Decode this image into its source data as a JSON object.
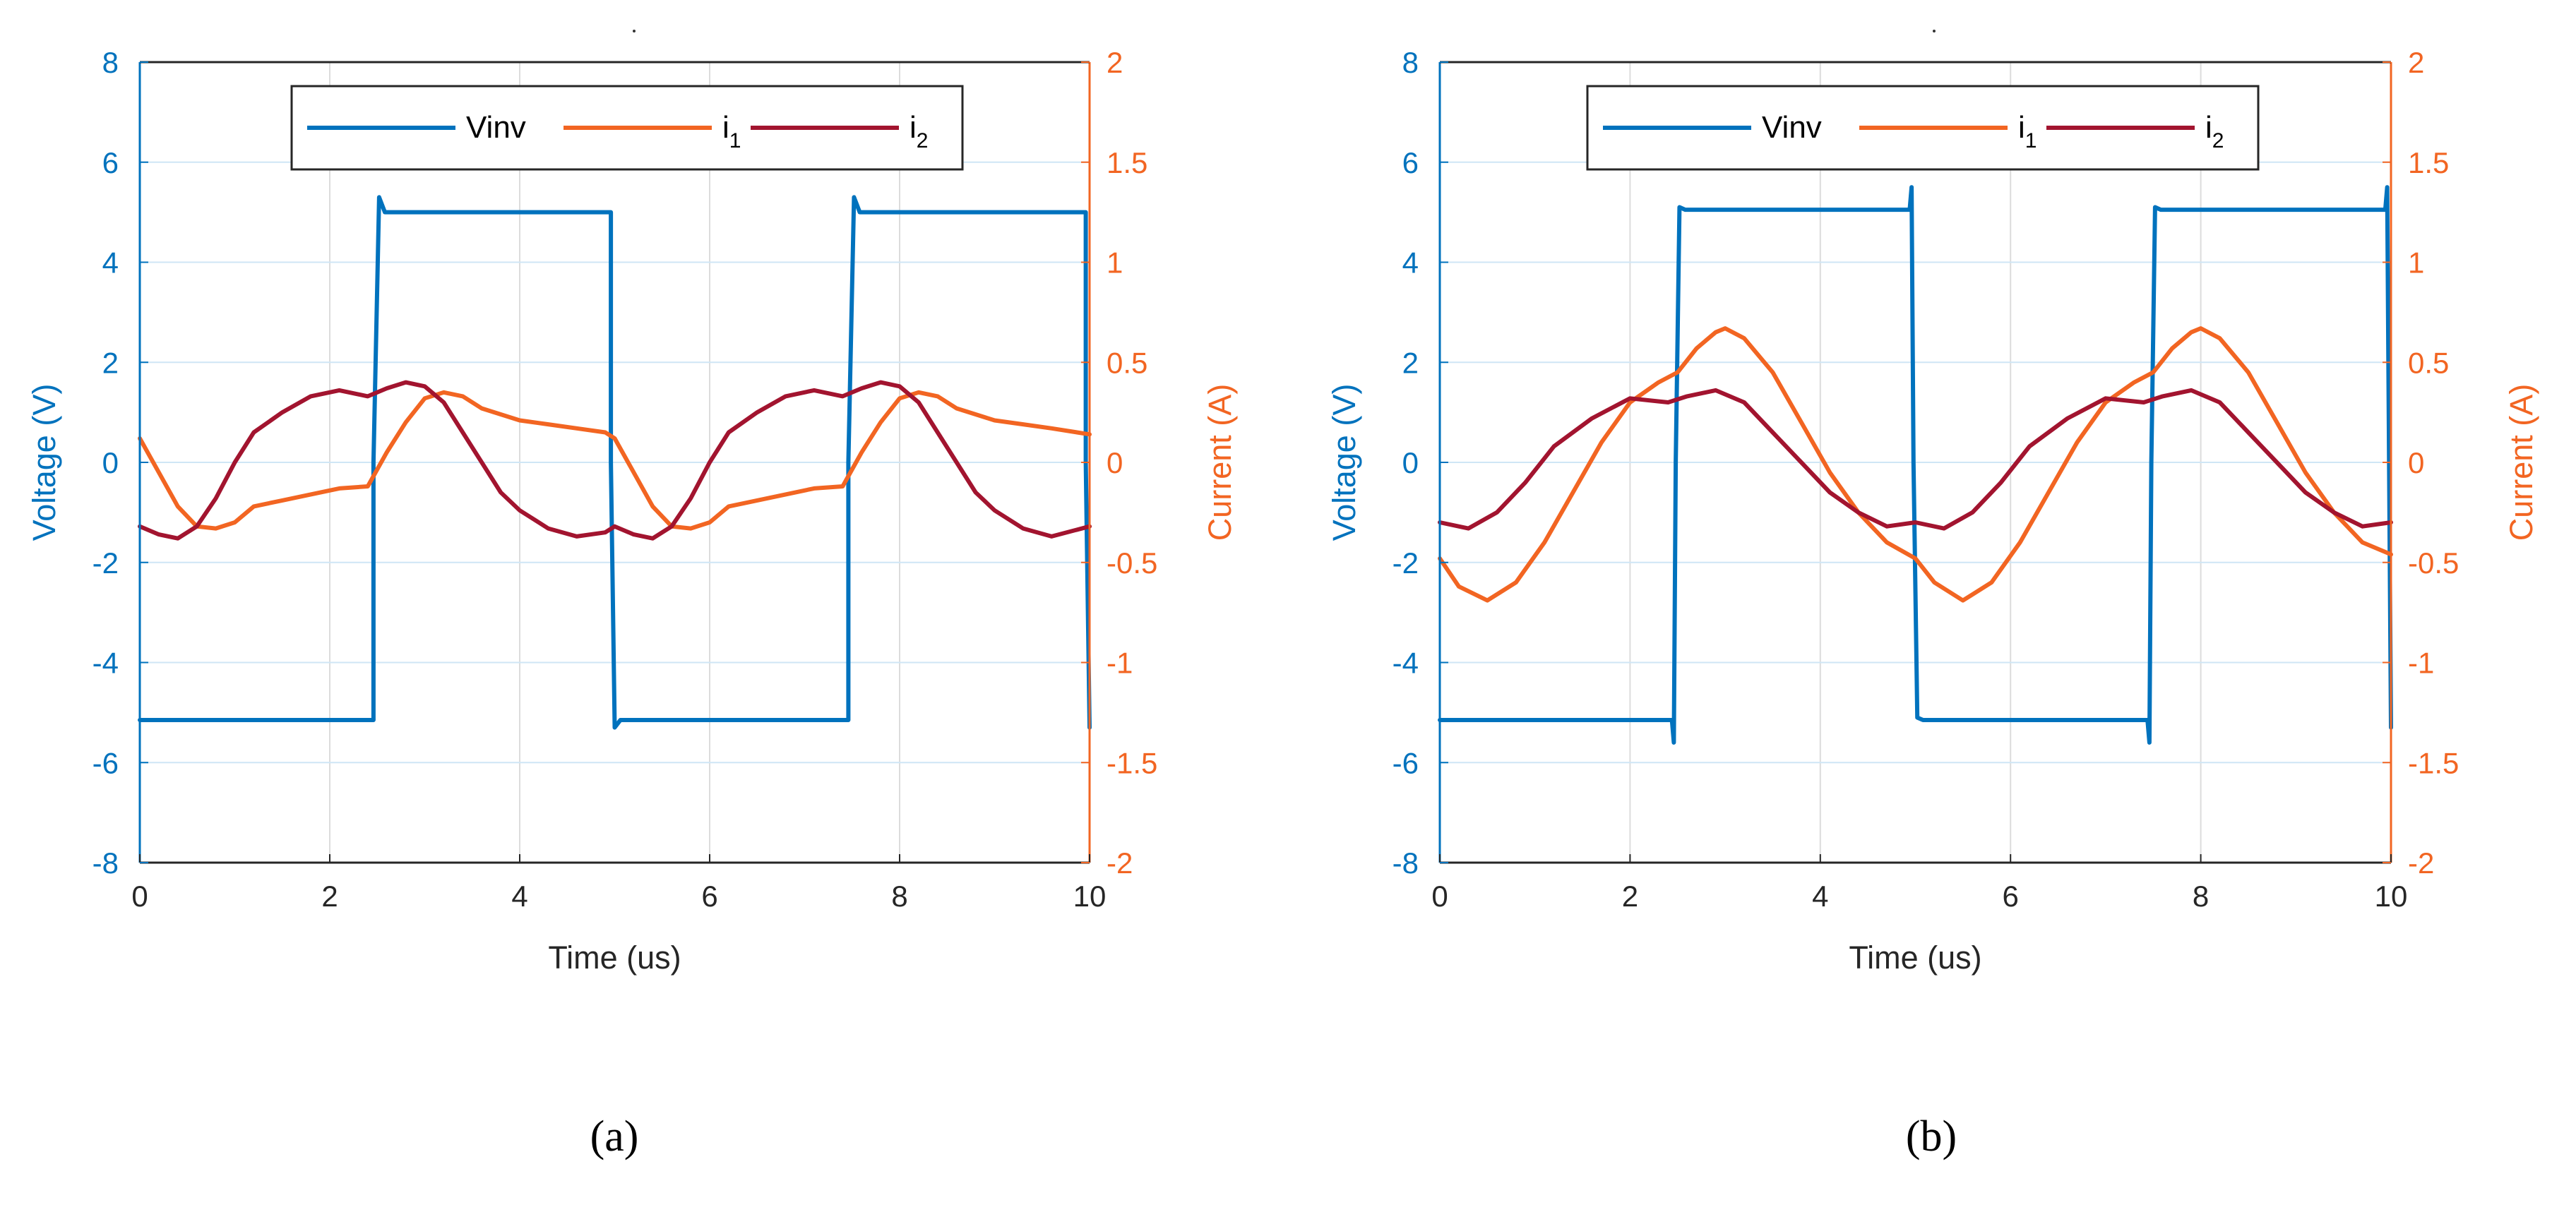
{
  "chart_data": [
    {
      "type": "line",
      "caption": "(a)",
      "xlabel": "Time (us)",
      "ylabel_left": "Voltage (V)",
      "ylabel_right": "Current (A)",
      "xlim": [
        0,
        10
      ],
      "ylim_left": [
        -8,
        8
      ],
      "ylim_right": [
        -2,
        2
      ],
      "xticks": [
        "0",
        "2",
        "4",
        "6",
        "8",
        "10"
      ],
      "yticks_left": [
        "-8",
        "-6",
        "-4",
        "-2",
        "0",
        "2",
        "4",
        "6",
        "8"
      ],
      "yticks_right": [
        "-2",
        "-1.5",
        "-1",
        "-0.5",
        "0",
        "0.5",
        "1",
        "1.5",
        "2"
      ],
      "grid": true,
      "legend": {
        "position": "top-center",
        "entries": [
          "Vinv",
          "i",
          "i"
        ],
        "subscripts": [
          "",
          "1",
          "2"
        ]
      },
      "series": [
        {
          "name": "Vinv",
          "axis": "left",
          "color": "#0072BD",
          "x": [
            0,
            2.46,
            2.46,
            2.52,
            2.58,
            4.96,
            4.96,
            5.0,
            5.06,
            7.46,
            7.46,
            7.52,
            7.58,
            9.96,
            9.96,
            10.0
          ],
          "y": [
            -5.15,
            -5.15,
            0,
            5.3,
            5.0,
            5.0,
            0,
            -5.3,
            -5.15,
            -5.15,
            0,
            5.3,
            5.0,
            5.0,
            0,
            -5.3
          ]
        },
        {
          "name": "i1",
          "axis": "right",
          "color": "#F26522",
          "x": [
            0,
            0.2,
            0.4,
            0.6,
            0.8,
            1.0,
            1.2,
            1.5,
            1.8,
            2.1,
            2.4,
            2.6,
            2.8,
            3.0,
            3.2,
            3.4,
            3.6,
            3.8,
            4.0,
            4.3,
            4.6,
            4.9,
            5.0,
            5.2,
            5.4,
            5.6,
            5.8,
            6.0,
            6.2,
            6.5,
            6.8,
            7.1,
            7.4,
            7.6,
            7.8,
            8.0,
            8.2,
            8.4,
            8.6,
            8.8,
            9.0,
            9.3,
            9.6,
            10.0
          ],
          "y": [
            0.12,
            -0.05,
            -0.22,
            -0.32,
            -0.33,
            -0.3,
            -0.22,
            -0.19,
            -0.16,
            -0.13,
            -0.12,
            0.05,
            0.2,
            0.32,
            0.35,
            0.33,
            0.27,
            0.24,
            0.21,
            0.19,
            0.17,
            0.15,
            0.12,
            -0.05,
            -0.22,
            -0.32,
            -0.33,
            -0.3,
            -0.22,
            -0.19,
            -0.16,
            -0.13,
            -0.12,
            0.05,
            0.2,
            0.32,
            0.35,
            0.33,
            0.27,
            0.24,
            0.21,
            0.19,
            0.17,
            0.14
          ]
        },
        {
          "name": "i2",
          "axis": "right",
          "color": "#A2142F",
          "x": [
            0,
            0.2,
            0.4,
            0.6,
            0.8,
            1.0,
            1.2,
            1.5,
            1.8,
            2.1,
            2.4,
            2.6,
            2.8,
            3.0,
            3.2,
            3.4,
            3.6,
            3.8,
            4.0,
            4.3,
            4.6,
            4.9,
            5.0,
            5.2,
            5.4,
            5.6,
            5.8,
            6.0,
            6.2,
            6.5,
            6.8,
            7.1,
            7.4,
            7.6,
            7.8,
            8.0,
            8.2,
            8.4,
            8.6,
            8.8,
            9.0,
            9.3,
            9.6,
            10.0
          ],
          "y": [
            -0.32,
            -0.36,
            -0.38,
            -0.32,
            -0.18,
            0.0,
            0.15,
            0.25,
            0.33,
            0.36,
            0.33,
            0.37,
            0.4,
            0.38,
            0.3,
            0.15,
            0.0,
            -0.15,
            -0.24,
            -0.33,
            -0.37,
            -0.35,
            -0.32,
            -0.36,
            -0.38,
            -0.32,
            -0.18,
            0.0,
            0.15,
            0.25,
            0.33,
            0.36,
            0.33,
            0.37,
            0.4,
            0.38,
            0.3,
            0.15,
            0.0,
            -0.15,
            -0.24,
            -0.33,
            -0.37,
            -0.32
          ]
        }
      ]
    },
    {
      "type": "line",
      "caption": "(b)",
      "xlabel": "Time (us)",
      "ylabel_left": "Voltage (V)",
      "ylabel_right": "Current (A)",
      "xlim": [
        0,
        10
      ],
      "ylim_left": [
        -8,
        8
      ],
      "ylim_right": [
        -2,
        2
      ],
      "xticks": [
        "0",
        "2",
        "4",
        "6",
        "8",
        "10"
      ],
      "yticks_left": [
        "-8",
        "-6",
        "-4",
        "-2",
        "0",
        "2",
        "4",
        "6",
        "8"
      ],
      "yticks_right": [
        "-2",
        "-1.5",
        "-1",
        "-0.5",
        "0",
        "0.5",
        "1",
        "1.5",
        "2"
      ],
      "grid": true,
      "legend": {
        "position": "top-center",
        "entries": [
          "Vinv",
          "i",
          "i"
        ],
        "subscripts": [
          "",
          "1",
          "2"
        ]
      },
      "series": [
        {
          "name": "Vinv",
          "axis": "left",
          "color": "#0072BD",
          "x": [
            0,
            2.44,
            2.46,
            2.48,
            2.52,
            2.58,
            4.94,
            4.96,
            4.98,
            5.02,
            5.08,
            7.44,
            7.46,
            7.48,
            7.52,
            7.58,
            9.94,
            9.96,
            9.98,
            10.0
          ],
          "y": [
            -5.15,
            -5.15,
            -5.6,
            0,
            5.1,
            5.05,
            5.05,
            5.5,
            0,
            -5.1,
            -5.15,
            -5.15,
            -5.6,
            0,
            5.1,
            5.05,
            5.05,
            5.5,
            0,
            -5.3
          ]
        },
        {
          "name": "i1",
          "axis": "right",
          "color": "#F26522",
          "x": [
            0,
            0.2,
            0.5,
            0.8,
            1.1,
            1.4,
            1.7,
            2.0,
            2.3,
            2.5,
            2.7,
            2.9,
            3.0,
            3.2,
            3.5,
            3.8,
            4.1,
            4.4,
            4.7,
            5.0,
            5.2,
            5.5,
            5.8,
            6.1,
            6.4,
            6.7,
            7.0,
            7.3,
            7.5,
            7.7,
            7.9,
            8.0,
            8.2,
            8.5,
            8.8,
            9.1,
            9.4,
            9.7,
            10.0
          ],
          "y": [
            -0.48,
            -0.62,
            -0.69,
            -0.6,
            -0.4,
            -0.15,
            0.1,
            0.3,
            0.4,
            0.45,
            0.57,
            0.65,
            0.67,
            0.62,
            0.45,
            0.2,
            -0.05,
            -0.25,
            -0.4,
            -0.48,
            -0.6,
            -0.69,
            -0.6,
            -0.4,
            -0.15,
            0.1,
            0.3,
            0.4,
            0.45,
            0.57,
            0.65,
            0.67,
            0.62,
            0.45,
            0.2,
            -0.05,
            -0.25,
            -0.4,
            -0.46
          ]
        },
        {
          "name": "i2",
          "axis": "right",
          "color": "#A2142F",
          "x": [
            0,
            0.3,
            0.6,
            0.9,
            1.2,
            1.6,
            2.0,
            2.4,
            2.6,
            2.9,
            3.2,
            3.5,
            3.8,
            4.1,
            4.4,
            4.7,
            5.0,
            5.3,
            5.6,
            5.9,
            6.2,
            6.6,
            7.0,
            7.4,
            7.6,
            7.9,
            8.2,
            8.5,
            8.8,
            9.1,
            9.4,
            9.7,
            10.0
          ],
          "y": [
            -0.3,
            -0.33,
            -0.25,
            -0.1,
            0.08,
            0.22,
            0.32,
            0.3,
            0.33,
            0.36,
            0.3,
            0.15,
            0.0,
            -0.15,
            -0.25,
            -0.32,
            -0.3,
            -0.33,
            -0.25,
            -0.1,
            0.08,
            0.22,
            0.32,
            0.3,
            0.33,
            0.36,
            0.3,
            0.15,
            0.0,
            -0.15,
            -0.25,
            -0.32,
            -0.3
          ]
        }
      ]
    }
  ]
}
